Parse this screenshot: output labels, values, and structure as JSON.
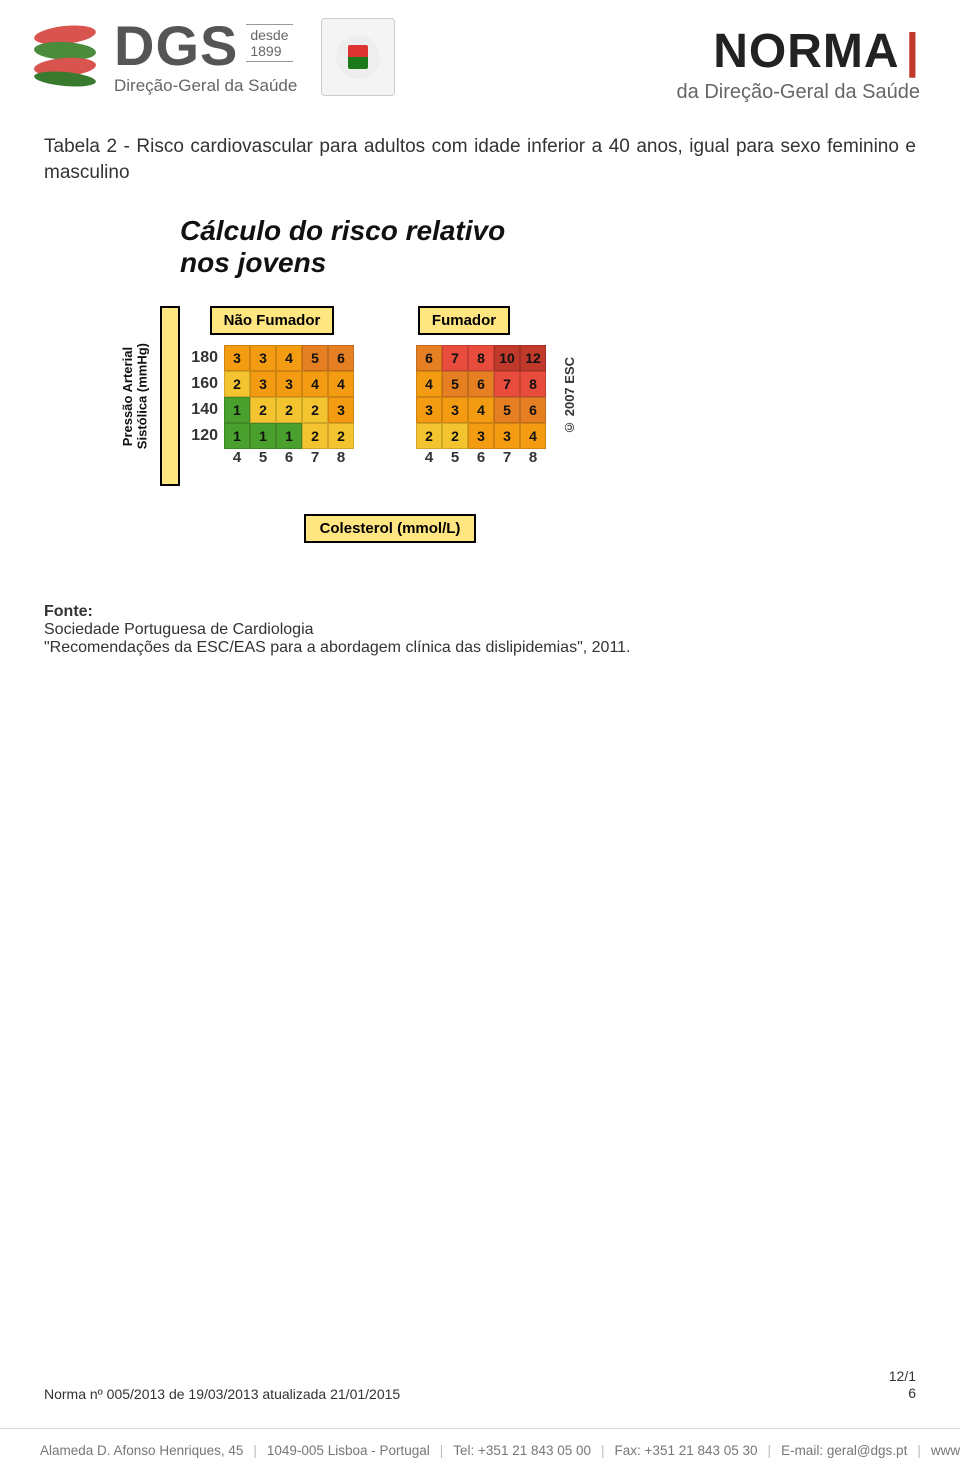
{
  "header": {
    "dgs": "DGS",
    "since_line1": "desde",
    "since_line2": "1899",
    "dgs_sub": "Direção-Geral da Saúde",
    "norma": "NORMA",
    "norma_sub": "da Direção-Geral da Saúde"
  },
  "body": {
    "table_caption": "Tabela 2 - Risco cardiovascular para adultos com idade inferior a 40 anos, igual para sexo feminino e masculino"
  },
  "chart": {
    "title_line1": "Cálculo do risco relativo",
    "title_line2": "nos jovens",
    "ylabel_line1": "Pressão Arterial",
    "ylabel_line2": "Sistólica (mmHg)",
    "xlabel": "Colesterol (mmol/L)",
    "copyright": "© 2007 ESC",
    "row_labels": [
      "180",
      "160",
      "140",
      "120"
    ],
    "col_labels": [
      "4",
      "5",
      "6",
      "7",
      "8"
    ],
    "panels": [
      {
        "header": "Não Fumador",
        "values": [
          [
            3,
            3,
            4,
            5,
            6
          ],
          [
            2,
            3,
            3,
            4,
            4
          ],
          [
            1,
            2,
            2,
            2,
            3
          ],
          [
            1,
            1,
            1,
            2,
            2
          ]
        ]
      },
      {
        "header": "Fumador",
        "values": [
          [
            6,
            7,
            8,
            10,
            12
          ],
          [
            4,
            5,
            6,
            7,
            8
          ],
          [
            3,
            3,
            4,
            5,
            6
          ],
          [
            2,
            2,
            3,
            3,
            4
          ]
        ]
      }
    ],
    "colors": {
      "1": "#4aa02c",
      "2": "#f4c430",
      "3": "#f39c12",
      "4": "#f39c12",
      "5": "#e67e22",
      "6": "#e67e22",
      "7": "#e74c3c",
      "8": "#e74c3c",
      "10": "#c0392b",
      "12": "#c0392b"
    },
    "label_bg": "#ffe680",
    "label_border": "#000000",
    "title_fontsize": 28,
    "cell_size": 26
  },
  "fonte": {
    "title": "Fonte:",
    "line1": "Sociedade Portuguesa de Cardiologia",
    "line2": "\"Recomendações da ESC/EAS para a abordagem clínica das dislipidemias\", 2011."
  },
  "footer": {
    "docref": "Norma nº 005/2013 de 19/03/2013 atualizada 21/01/2015",
    "page_top": "12/1",
    "page_bottom": "6",
    "address": "Alameda D. Afonso Henriques, 45",
    "postal": "1049-005 Lisboa - Portugal",
    "tel": "Tel: +351 21 843 05 00",
    "fax": "Fax: +351 21 843 05 30",
    "email": "E-mail: geral@dgs.pt",
    "site": "www.dgs.pt"
  }
}
